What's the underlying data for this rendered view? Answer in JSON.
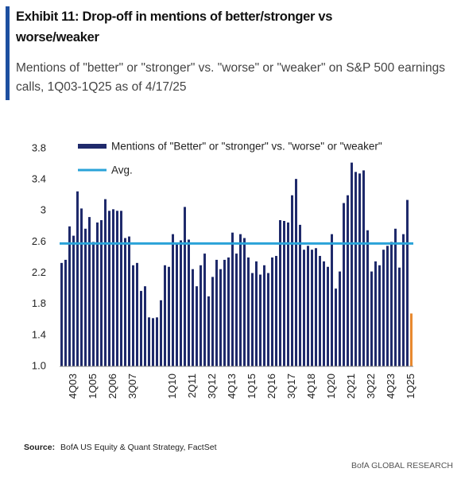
{
  "chart_data": {
    "type": "bar",
    "title": "Exhibit 11: Drop-off in mentions of better/stronger vs worse/weaker",
    "subtitle": "Mentions of \"better\" or \"stronger\" vs. \"worse\" or \"weaker\" on S&P 500 earnings calls, 1Q03-1Q25 as of 4/17/25",
    "source_label": "Source:",
    "source": "BofA US Equity & Quant Strategy, FactSet",
    "footer": "BofA GLOBAL RESEARCH",
    "categories": [
      null,
      null,
      null,
      "4Q03",
      null,
      null,
      null,
      null,
      "1Q05",
      null,
      null,
      null,
      null,
      "2Q06",
      null,
      null,
      null,
      null,
      "3Q07",
      null,
      null,
      null,
      null,
      null,
      null,
      null,
      null,
      null,
      "1Q10",
      null,
      null,
      null,
      null,
      "2Q11",
      null,
      null,
      null,
      null,
      "3Q12",
      null,
      null,
      null,
      null,
      "4Q13",
      null,
      null,
      null,
      null,
      "1Q15",
      null,
      null,
      null,
      null,
      "2Q16",
      null,
      null,
      null,
      null,
      "3Q17",
      null,
      null,
      null,
      null,
      "4Q18",
      null,
      null,
      null,
      null,
      "1Q20",
      null,
      null,
      null,
      null,
      "2Q21",
      null,
      null,
      null,
      null,
      "3Q22",
      null,
      null,
      null,
      null,
      "4Q23",
      null,
      null,
      null,
      null,
      "1Q25"
    ],
    "series": [
      {
        "name": "Mentions of \"Better\" or \"stronger\" vs. \"worse\" or \"weaker\"",
        "color": "#1f2a6b",
        "values": [
          2.33,
          2.37,
          2.8,
          2.68,
          3.25,
          3.03,
          2.77,
          2.92,
          2.6,
          2.85,
          2.88,
          3.15,
          3.0,
          3.02,
          3.0,
          3.0,
          2.65,
          2.67,
          2.3,
          2.33,
          1.97,
          2.03,
          1.63,
          1.62,
          1.63,
          1.85,
          2.3,
          2.28,
          2.7,
          2.58,
          2.62,
          3.05,
          2.63,
          2.25,
          2.03,
          2.3,
          2.45,
          1.9,
          2.15,
          2.37,
          2.25,
          2.37,
          2.4,
          2.72,
          2.45,
          2.7,
          2.65,
          2.4,
          2.2,
          2.35,
          2.18,
          2.3,
          2.2,
          2.4,
          2.42,
          2.88,
          2.87,
          2.85,
          3.2,
          3.41,
          2.82,
          2.5,
          2.55,
          2.5,
          2.52,
          2.42,
          2.35,
          2.28,
          2.7,
          2.0,
          2.22,
          3.1,
          3.2,
          3.62,
          3.5,
          3.48,
          3.52,
          2.75,
          2.22,
          2.35,
          2.3,
          2.5,
          2.55,
          2.6,
          2.77,
          2.27,
          2.7,
          3.14,
          1.68
        ],
        "last_color": "#e8892f"
      }
    ],
    "avg": {
      "name": "Avg.",
      "value": 2.58,
      "color": "#2aa3d8"
    },
    "ylim": [
      1.0,
      3.8
    ],
    "yticks": [
      {
        "value": 1.0,
        "label": "1.0"
      },
      1.4,
      1.8,
      2.2,
      2.6,
      3.0,
      3.4,
      3.8
    ]
  }
}
